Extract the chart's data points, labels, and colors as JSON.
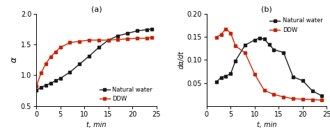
{
  "panel_a": {
    "natural_water": {
      "t": [
        0,
        1,
        2,
        3,
        4,
        5,
        7,
        9,
        11,
        13,
        15,
        17,
        19,
        21,
        23,
        24
      ],
      "alpha": [
        0.76,
        0.8,
        0.84,
        0.87,
        0.91,
        0.95,
        1.05,
        1.18,
        1.31,
        1.45,
        1.57,
        1.64,
        1.68,
        1.72,
        1.74,
        1.75
      ]
    },
    "ddw": {
      "t": [
        0,
        1,
        2,
        3,
        4,
        5,
        7,
        9,
        11,
        13,
        15,
        17,
        19,
        21,
        23,
        24
      ],
      "alpha": [
        0.82,
        1.04,
        1.19,
        1.3,
        1.38,
        1.45,
        1.53,
        1.55,
        1.57,
        1.57,
        1.57,
        1.58,
        1.59,
        1.6,
        1.6,
        1.61
      ]
    },
    "xlabel": "t, min",
    "ylabel": "α",
    "title": "(a)",
    "xlim": [
      0,
      25
    ],
    "ylim": [
      0.5,
      2.0
    ],
    "yticks": [
      0.5,
      1.0,
      1.5,
      2.0
    ],
    "xticks": [
      0,
      5,
      10,
      15,
      20,
      25
    ],
    "legend_loc": "lower right"
  },
  "panel_b": {
    "natural_water": {
      "t": [
        2,
        3,
        4,
        5,
        6,
        8,
        10,
        11,
        12,
        13,
        14,
        16,
        18,
        20,
        22,
        24
      ],
      "dadt": [
        0.052,
        0.062,
        0.065,
        0.07,
        0.098,
        0.132,
        0.143,
        0.147,
        0.145,
        0.133,
        0.122,
        0.116,
        0.063,
        0.055,
        0.033,
        0.022
      ]
    },
    "ddw": {
      "t": [
        2,
        3,
        4,
        5,
        6,
        8,
        10,
        12,
        14,
        16,
        18,
        20,
        22,
        24
      ],
      "dadt": [
        0.149,
        0.155,
        0.167,
        0.158,
        0.13,
        0.115,
        0.069,
        0.034,
        0.025,
        0.02,
        0.016,
        0.015,
        0.014,
        0.013
      ]
    },
    "xlabel": "t, min",
    "ylabel": "dα/dt",
    "title": "(b)",
    "xlim": [
      0,
      25
    ],
    "ylim": [
      0,
      0.2
    ],
    "yticks": [
      0.05,
      0.1,
      0.15,
      0.2
    ],
    "xticks": [
      0,
      5,
      10,
      15,
      20,
      25
    ],
    "legend_loc": "upper right"
  },
  "natural_water_color": "#1a1a1a",
  "ddw_color": "#cc2200",
  "marker": "s",
  "markersize": 3.0,
  "linewidth": 1.0
}
